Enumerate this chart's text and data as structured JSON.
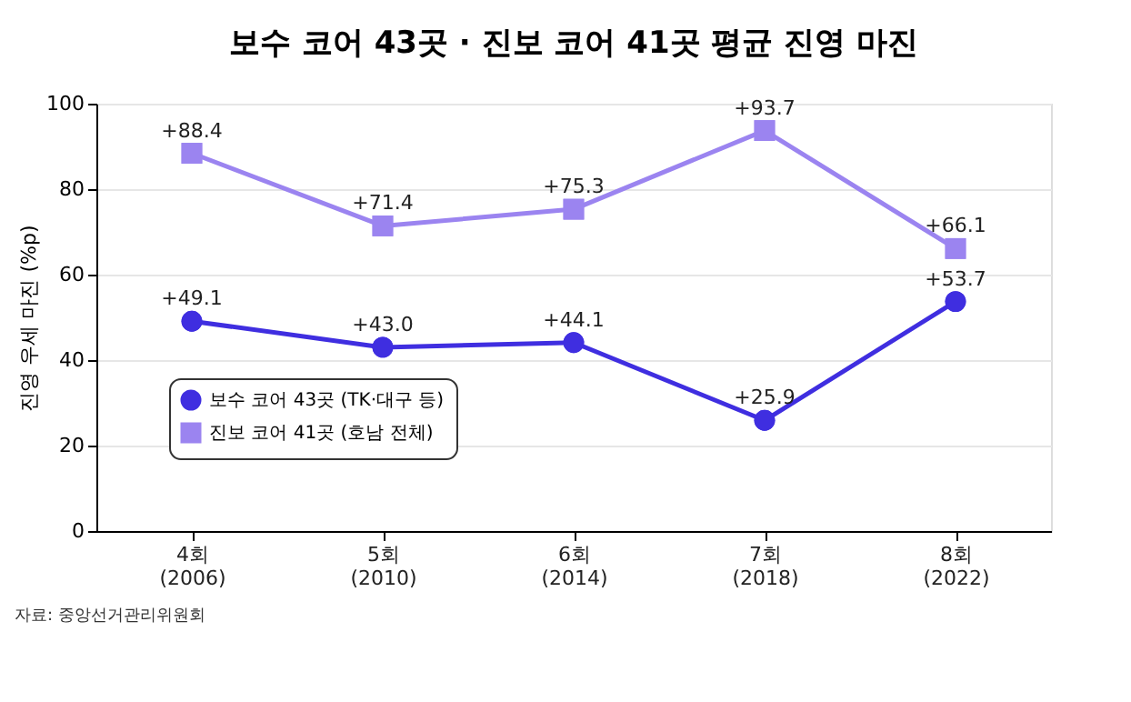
{
  "chart_data": {
    "type": "line",
    "title": "보수 코어 43곳 · 진보 코어 41곳 평균 진영 마진",
    "ylabel": "진영 우세 마진 (%p)",
    "categories": [
      "4회\n(2006)",
      "5회\n(2010)",
      "6회\n(2014)",
      "7회\n(2018)",
      "8회\n(2022)"
    ],
    "series": [
      {
        "name": "보수 코어 43곳 (TK·대구 등)",
        "color": "#3f2ee0",
        "marker": "circle",
        "values": [
          49.1,
          43.0,
          44.1,
          25.9,
          53.7
        ],
        "value_labels": [
          "+49.1",
          "+43.0",
          "+44.1",
          "+25.9",
          "+53.7"
        ]
      },
      {
        "name": "진보 코어 41곳 (호남 전체)",
        "color": "#9b84f0",
        "marker": "square",
        "values": [
          88.4,
          71.4,
          75.3,
          93.7,
          66.1
        ],
        "value_labels": [
          "+88.4",
          "+71.4",
          "+75.3",
          "+93.7",
          "+66.1"
        ]
      }
    ],
    "ylim": [
      0,
      100
    ],
    "yticks": [
      0,
      20,
      40,
      60,
      80,
      100
    ],
    "grid": "y",
    "legend": "bottom left",
    "annotations": [
      "자료: 중앙선거관리위원회"
    ]
  }
}
